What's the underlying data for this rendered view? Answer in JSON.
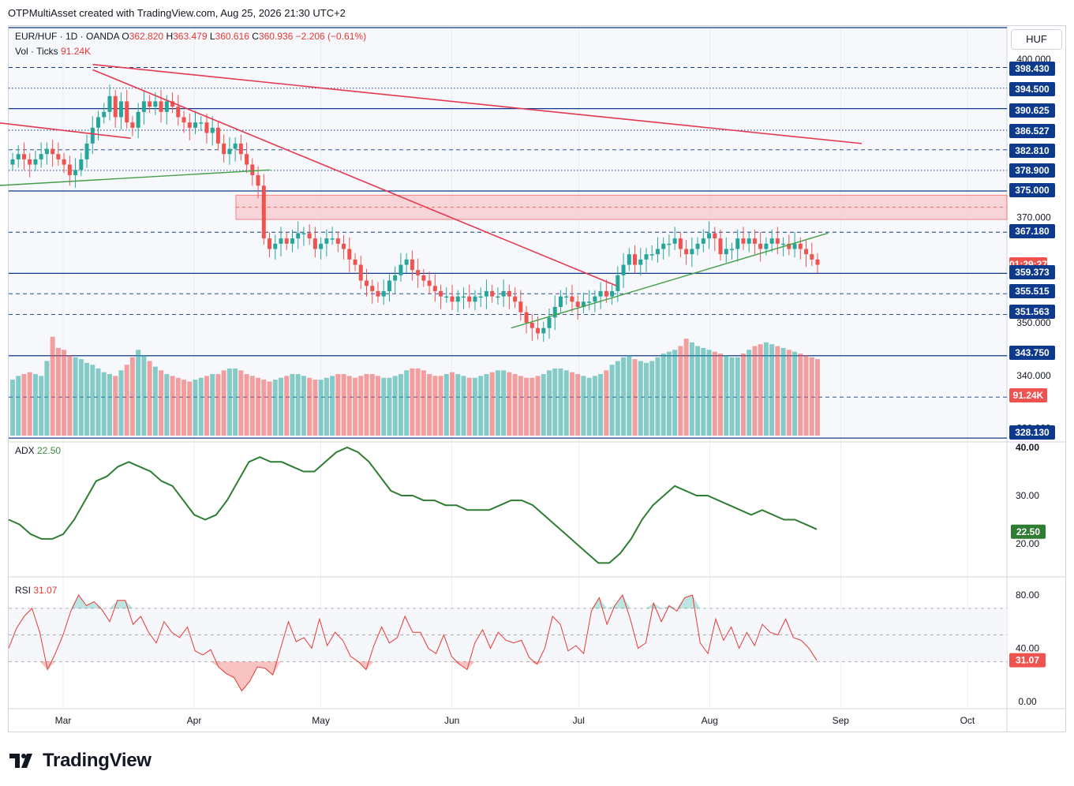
{
  "header": "OTPMultiAsset created with TradingView.com, Aug 25, 2026 21:30 UTC+2",
  "currency_button": "HUF",
  "legend": {
    "symbol": "EUR/HUF · 1D · OANDA",
    "o_label": "O",
    "o": "362.820",
    "h_label": "H",
    "h": "363.479",
    "l_label": "L",
    "l": "360.616",
    "c_label": "C",
    "c": "360.936",
    "change": "−2.206 (−0.61%)",
    "vol_label": "Vol · Ticks",
    "vol_value": "91.24K",
    "adx_label": "ADX",
    "adx_value": "22.50",
    "rsi_label": "RSI",
    "rsi_value": "31.07"
  },
  "brand": "TradingView",
  "colors": {
    "up": "#26a69a",
    "down": "#ef5350",
    "blue_line": "#0d3a8c",
    "trend_red": "#e53950",
    "trend_green": "#43a047",
    "adx": "#2e7d32",
    "rsi": "#e53935"
  },
  "chart_data": [
    {
      "type": "candlestick",
      "title": "EUR/HUF · 1D · OANDA",
      "x_ticks": [
        "Mar",
        "Apr",
        "May",
        "Jun",
        "Jul",
        "Aug",
        "Sep",
        "Oct"
      ],
      "y_ticks": [
        "400.000",
        "370.000",
        "350.000",
        "340.000",
        "330.000"
      ],
      "ylim": [
        327,
        402
      ],
      "price_labels": [
        {
          "text": "398.430",
          "style": "blue"
        },
        {
          "text": "394.500",
          "style": "blue"
        },
        {
          "text": "390.625",
          "style": "blue"
        },
        {
          "text": "386.527",
          "style": "blue"
        },
        {
          "text": "382.810",
          "style": "blue"
        },
        {
          "text": "378.900",
          "style": "blue"
        },
        {
          "text": "375.000",
          "style": "blue"
        },
        {
          "text": "367.180",
          "style": "blue"
        },
        {
          "text": "01:29:27",
          "style": "red"
        },
        {
          "text": "359.373",
          "style": "blue"
        },
        {
          "text": "355.515",
          "style": "blue"
        },
        {
          "text": "351.563",
          "style": "blue"
        },
        {
          "text": "343.750",
          "style": "blue"
        },
        {
          "text": "91.24K",
          "style": "red"
        },
        {
          "text": "328.130",
          "style": "blue"
        }
      ],
      "horizontal_levels": [
        {
          "value": 398.43,
          "style": "dashed"
        },
        {
          "value": 394.5,
          "style": "dotted"
        },
        {
          "value": 390.625,
          "style": "solid"
        },
        {
          "value": 386.527,
          "style": "dotted"
        },
        {
          "value": 382.81,
          "style": "dashed"
        },
        {
          "value": 378.9,
          "style": "dotted"
        },
        {
          "value": 375.0,
          "style": "solid"
        },
        {
          "value": 367.18,
          "style": "dashed"
        },
        {
          "value": 359.373,
          "style": "solid"
        },
        {
          "value": 355.515,
          "style": "dashed"
        },
        {
          "value": 351.563,
          "style": "dashed"
        },
        {
          "value": 343.75,
          "style": "solid"
        },
        {
          "value": 335.9,
          "style": "dashed"
        },
        {
          "value": 328.13,
          "style": "solid"
        }
      ],
      "zone": {
        "from": 369.6,
        "to": 374.2
      },
      "candles_close": [
        381,
        382,
        381,
        380,
        381,
        382,
        383,
        382,
        381,
        380,
        378,
        379,
        381,
        384,
        387,
        389,
        390,
        393,
        389,
        392,
        388,
        387,
        390,
        392,
        391,
        392,
        390,
        392,
        391,
        389,
        388,
        387,
        388,
        388,
        386,
        387,
        384,
        382,
        383,
        384,
        382,
        380,
        378,
        376,
        366,
        364,
        365,
        366,
        365,
        366,
        367,
        367,
        366,
        364,
        365,
        366,
        366,
        365,
        364,
        362,
        361,
        358,
        357,
        356,
        355,
        356,
        358,
        359,
        361,
        362,
        360,
        359,
        358,
        357,
        356,
        355,
        355,
        354,
        355,
        355,
        354,
        355,
        355,
        356,
        355,
        355,
        356,
        355,
        354,
        352,
        350,
        349,
        348,
        349,
        351,
        353,
        355,
        355,
        354,
        353,
        354,
        354,
        355,
        356,
        355,
        356,
        359,
        361,
        363,
        361,
        362,
        363,
        363,
        364,
        365,
        365,
        366,
        364,
        363,
        364,
        365,
        366,
        367,
        366,
        363,
        364,
        364,
        366,
        365,
        366,
        365,
        364,
        365,
        366,
        365,
        365,
        364,
        365,
        364,
        363,
        362,
        361
      ],
      "volume_ticks": [
        60,
        64,
        66,
        68,
        66,
        64,
        80,
        106,
        94,
        92,
        86,
        84,
        82,
        78,
        76,
        72,
        68,
        66,
        64,
        70,
        76,
        84,
        92,
        86,
        80,
        74,
        70,
        66,
        64,
        62,
        60,
        58,
        60,
        62,
        64,
        66,
        66,
        70,
        72,
        72,
        70,
        66,
        64,
        62,
        60,
        58,
        60,
        62,
        64,
        66,
        66,
        64,
        62,
        60,
        60,
        62,
        64,
        66,
        66,
        64,
        62,
        64,
        66,
        66,
        64,
        62,
        62,
        64,
        66,
        70,
        72,
        72,
        70,
        66,
        64,
        64,
        66,
        68,
        66,
        64,
        62,
        62,
        64,
        66,
        68,
        70,
        70,
        68,
        66,
        64,
        62,
        62,
        64,
        66,
        70,
        72,
        72,
        70,
        68,
        66,
        64,
        62,
        64,
        66,
        70,
        76,
        80,
        84,
        86,
        82,
        80,
        78,
        80,
        84,
        88,
        90,
        92,
        96,
        104,
        100,
        96,
        94,
        92,
        90,
        88,
        86,
        84,
        84,
        88,
        92,
        96,
        98,
        100,
        98,
        96,
        94,
        92,
        90,
        88,
        86,
        84,
        82
      ],
      "vol_ylim": [
        0,
        110
      ],
      "trendlines": [
        {
          "color": "red",
          "from": {
            "date": "Mar 08",
            "value": 399
          },
          "to": {
            "date": "Sep 06",
            "value": 384
          }
        },
        {
          "color": "red",
          "from": {
            "date": "Feb 14",
            "value": 388
          },
          "to": {
            "date": "Mar 17",
            "value": 385
          }
        },
        {
          "color": "red",
          "from": {
            "date": "Mar 08",
            "value": 398
          },
          "to": {
            "date": "Jul 10",
            "value": 357
          }
        },
        {
          "color": "green",
          "from": {
            "date": "Feb 14",
            "value": 376
          },
          "to": {
            "date": "Apr 19",
            "value": 379
          }
        },
        {
          "color": "green",
          "from": {
            "date": "Jun 15",
            "value": 349
          },
          "to": {
            "date": "Aug 29",
            "value": 367
          }
        }
      ]
    },
    {
      "type": "line",
      "name": "ADX",
      "y_ticks": [
        "40.00",
        "30.00",
        "20.00"
      ],
      "ylim": [
        18,
        42
      ],
      "last_value": "22.50",
      "values": [
        25,
        24,
        22,
        21,
        21,
        22,
        25,
        29,
        33,
        34,
        36,
        37,
        36,
        35,
        33,
        32,
        29,
        26,
        25,
        26,
        29,
        33,
        37,
        38,
        37,
        37,
        36,
        35,
        35,
        37,
        39,
        40,
        39,
        37,
        34,
        31,
        30,
        30,
        29,
        29,
        28,
        28,
        27,
        27,
        27,
        28,
        29,
        29,
        28,
        26,
        24,
        22,
        20,
        18,
        16,
        16,
        18,
        21,
        25,
        28,
        30,
        32,
        31,
        30,
        30,
        29,
        28,
        27,
        26,
        27,
        26,
        25,
        25,
        24,
        23
      ]
    },
    {
      "type": "line",
      "name": "RSI",
      "y_ticks": [
        "80.00",
        "40.00",
        "0.00"
      ],
      "ylim": [
        -5,
        85
      ],
      "overbought": 70,
      "oversold": 30,
      "middle": 50,
      "last_value": "31.07",
      "values": [
        40,
        55,
        64,
        70,
        52,
        24,
        36,
        50,
        68,
        80,
        72,
        75,
        69,
        60,
        76,
        76,
        58,
        64,
        52,
        44,
        60,
        52,
        48,
        56,
        38,
        35,
        39,
        26,
        21,
        18,
        8,
        15,
        26,
        25,
        20,
        40,
        60,
        45,
        48,
        40,
        62,
        42,
        52,
        46,
        34,
        30,
        24,
        42,
        56,
        44,
        48,
        64,
        52,
        52,
        40,
        36,
        50,
        34,
        28,
        24,
        44,
        54,
        40,
        52,
        46,
        44,
        46,
        33,
        28,
        40,
        64,
        58,
        38,
        42,
        36,
        68,
        78,
        58,
        72,
        80,
        62,
        40,
        44,
        74,
        60,
        72,
        68,
        78,
        80,
        44,
        36,
        62,
        46,
        56,
        40,
        52,
        42,
        58,
        52,
        50,
        62,
        48,
        46,
        40,
        31
      ]
    }
  ]
}
